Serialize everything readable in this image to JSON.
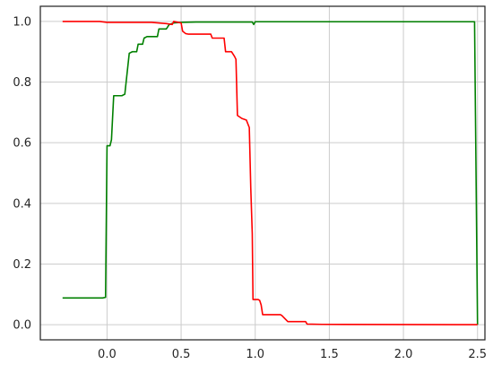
{
  "chart_data": {
    "type": "line",
    "title": "",
    "xlabel": "",
    "ylabel": "",
    "xlim": [
      -0.45,
      2.55
    ],
    "ylim": [
      -0.05,
      1.05
    ],
    "grid": true,
    "x_ticks": [
      0.0,
      0.5,
      1.0,
      1.5,
      2.0,
      2.5
    ],
    "x_tick_labels": [
      "0.0",
      "0.5",
      "1.0",
      "1.5",
      "2.0",
      "2.5"
    ],
    "y_ticks": [
      0.0,
      0.2,
      0.4,
      0.6,
      0.8,
      1.0
    ],
    "y_tick_labels": [
      "0.0",
      "0.2",
      "0.4",
      "0.6",
      "0.8",
      "1.0"
    ],
    "series": [
      {
        "color": "#008000",
        "points": [
          [
            -0.3,
            0.088
          ],
          [
            -0.03,
            0.088
          ],
          [
            -0.01,
            0.09
          ],
          [
            0.0,
            0.59
          ],
          [
            0.02,
            0.59
          ],
          [
            0.03,
            0.61
          ],
          [
            0.045,
            0.755
          ],
          [
            0.1,
            0.755
          ],
          [
            0.12,
            0.76
          ],
          [
            0.14,
            0.85
          ],
          [
            0.15,
            0.895
          ],
          [
            0.17,
            0.9
          ],
          [
            0.2,
            0.9
          ],
          [
            0.21,
            0.925
          ],
          [
            0.24,
            0.925
          ],
          [
            0.25,
            0.945
          ],
          [
            0.27,
            0.95
          ],
          [
            0.34,
            0.95
          ],
          [
            0.35,
            0.975
          ],
          [
            0.4,
            0.975
          ],
          [
            0.42,
            0.99
          ],
          [
            0.45,
            0.995
          ],
          [
            0.5,
            0.997
          ],
          [
            0.6,
            0.998
          ],
          [
            0.98,
            0.998
          ],
          [
            0.99,
            0.99
          ],
          [
            1.0,
            0.999
          ],
          [
            1.5,
            0.999
          ],
          [
            2.47,
            0.999
          ],
          [
            2.48,
            0.999
          ],
          [
            2.5,
            0.0
          ]
        ]
      },
      {
        "color": "#ff0000",
        "points": [
          [
            -0.3,
            1.0
          ],
          [
            -0.05,
            1.0
          ],
          [
            0.0,
            0.997
          ],
          [
            0.3,
            0.997
          ],
          [
            0.4,
            0.993
          ],
          [
            0.44,
            0.99
          ],
          [
            0.45,
            1.0
          ],
          [
            0.5,
            0.995
          ],
          [
            0.51,
            0.968
          ],
          [
            0.53,
            0.96
          ],
          [
            0.55,
            0.958
          ],
          [
            0.7,
            0.958
          ],
          [
            0.71,
            0.945
          ],
          [
            0.79,
            0.945
          ],
          [
            0.8,
            0.9
          ],
          [
            0.84,
            0.9
          ],
          [
            0.86,
            0.885
          ],
          [
            0.87,
            0.875
          ],
          [
            0.88,
            0.69
          ],
          [
            0.91,
            0.68
          ],
          [
            0.94,
            0.675
          ],
          [
            0.96,
            0.65
          ],
          [
            0.97,
            0.45
          ],
          [
            0.98,
            0.3
          ],
          [
            0.985,
            0.083
          ],
          [
            1.02,
            0.083
          ],
          [
            1.03,
            0.08
          ],
          [
            1.04,
            0.065
          ],
          [
            1.05,
            0.033
          ],
          [
            1.17,
            0.033
          ],
          [
            1.18,
            0.03
          ],
          [
            1.22,
            0.01
          ],
          [
            1.34,
            0.01
          ],
          [
            1.35,
            0.002
          ],
          [
            1.45,
            0.001
          ],
          [
            2.5,
            0.0
          ]
        ]
      }
    ]
  }
}
